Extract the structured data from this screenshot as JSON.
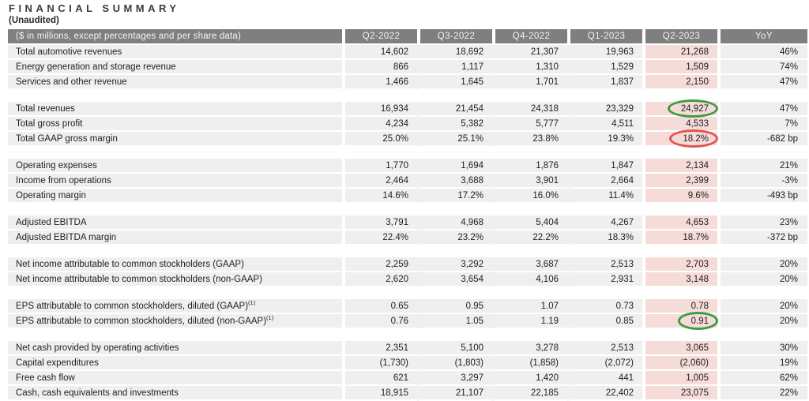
{
  "page": {
    "title": "FINANCIAL SUMMARY",
    "subtitle": "(Unaudited)"
  },
  "colors": {
    "header_bg": "#7f7f7f",
    "row_bg": "#efefef",
    "highlight_bg": "#f5dcd8",
    "circle_green": "#3f9b42",
    "circle_red": "#e2534e"
  },
  "table": {
    "columns": [
      "($ in millions, except percentages and per share data)",
      "Q2-2022",
      "Q3-2022",
      "Q4-2022",
      "Q1-2023",
      "Q2-2023",
      "YoY"
    ],
    "highlight_column": "Q2-2023",
    "circle_column_index": 4,
    "sections": [
      {
        "rows": [
          {
            "label": "Total automotive revenues",
            "values": [
              "14,602",
              "18,692",
              "21,307",
              "19,963",
              "21,268",
              "46%"
            ]
          },
          {
            "label": "Energy generation and storage revenue",
            "values": [
              "866",
              "1,117",
              "1,310",
              "1,529",
              "1,509",
              "74%"
            ]
          },
          {
            "label": "Services and other revenue",
            "values": [
              "1,466",
              "1,645",
              "1,701",
              "1,837",
              "2,150",
              "47%"
            ]
          }
        ]
      },
      {
        "rows": [
          {
            "label": "Total revenues",
            "values": [
              "16,934",
              "21,454",
              "24,318",
              "23,329",
              "24,927",
              "47%"
            ],
            "circle": "green"
          },
          {
            "label": "Total gross profit",
            "values": [
              "4,234",
              "5,382",
              "5,777",
              "4,511",
              "4,533",
              "7%"
            ]
          },
          {
            "label": "Total GAAP gross margin",
            "values": [
              "25.0%",
              "25.1%",
              "23.8%",
              "19.3%",
              "18.2%",
              "-682 bp"
            ],
            "circle": "red"
          }
        ]
      },
      {
        "rows": [
          {
            "label": "Operating expenses",
            "values": [
              "1,770",
              "1,694",
              "1,876",
              "1,847",
              "2,134",
              "21%"
            ]
          },
          {
            "label": "Income from operations",
            "values": [
              "2,464",
              "3,688",
              "3,901",
              "2,664",
              "2,399",
              "-3%"
            ]
          },
          {
            "label": "Operating margin",
            "values": [
              "14.6%",
              "17.2%",
              "16.0%",
              "11.4%",
              "9.6%",
              "-493 bp"
            ]
          }
        ]
      },
      {
        "rows": [
          {
            "label": "Adjusted EBITDA",
            "values": [
              "3,791",
              "4,968",
              "5,404",
              "4,267",
              "4,653",
              "23%"
            ]
          },
          {
            "label": "Adjusted EBITDA margin",
            "values": [
              "22.4%",
              "23.2%",
              "22.2%",
              "18.3%",
              "18.7%",
              "-372 bp"
            ]
          }
        ]
      },
      {
        "rows": [
          {
            "label": "Net income attributable to common stockholders (GAAP)",
            "values": [
              "2,259",
              "3,292",
              "3,687",
              "2,513",
              "2,703",
              "20%"
            ]
          },
          {
            "label": "Net income attributable to common stockholders (non-GAAP)",
            "values": [
              "2,620",
              "3,654",
              "4,106",
              "2,931",
              "3,148",
              "20%"
            ]
          }
        ]
      },
      {
        "rows": [
          {
            "label": "EPS attributable to common stockholders, diluted (GAAP)",
            "sup": "(1)",
            "values": [
              "0.65",
              "0.95",
              "1.07",
              "0.73",
              "0.78",
              "20%"
            ]
          },
          {
            "label": "EPS attributable to common stockholders, diluted (non-GAAP)",
            "sup": "(1)",
            "values": [
              "0.76",
              "1.05",
              "1.19",
              "0.85",
              "0.91",
              "20%"
            ],
            "circle": "green"
          }
        ]
      },
      {
        "rows": [
          {
            "label": "Net cash provided by operating activities",
            "values": [
              "2,351",
              "5,100",
              "3,278",
              "2,513",
              "3,065",
              "30%"
            ]
          },
          {
            "label": "Capital expenditures",
            "values": [
              "(1,730)",
              "(1,803)",
              "(1,858)",
              "(2,072)",
              "(2,060)",
              "19%"
            ]
          },
          {
            "label": "Free cash flow",
            "values": [
              "621",
              "3,297",
              "1,420",
              "441",
              "1,005",
              "62%"
            ]
          },
          {
            "label": "Cash, cash equivalents and investments",
            "values": [
              "18,915",
              "21,107",
              "22,185",
              "22,402",
              "23,075",
              "22%"
            ]
          }
        ]
      }
    ]
  }
}
